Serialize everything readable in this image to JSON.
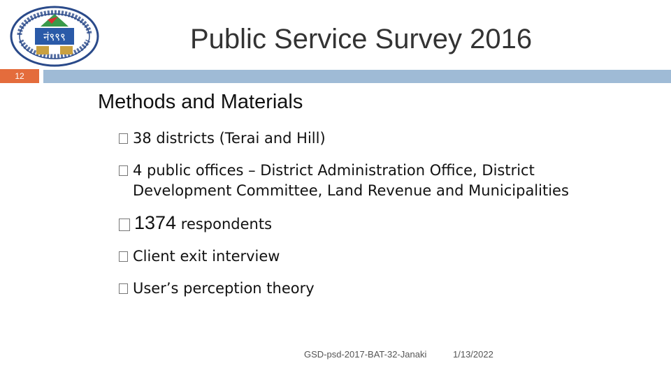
{
  "slide": {
    "title": "Public Service Survey 2016",
    "number": "12",
    "heading": "Methods and Materials"
  },
  "bullets": [
    {
      "text": "38 districts (Terai and Hill)"
    },
    {
      "text": "4 public offices – District Administration Office, District Development Committee, Land Revenue and Municipalities"
    },
    {
      "number": "1374",
      "text": "respondents"
    },
    {
      "text": "Client exit interview"
    },
    {
      "text": "User’s perception theory"
    }
  ],
  "footer": {
    "reference": "GSD-psd-2017-BAT-32-Janaki",
    "date": "1/13/2022"
  },
  "logo": {
    "center_text": "नं९९९",
    "ring_text": "NEPAL ADMINISTRATIVE STAFF COLLEGE"
  },
  "colors": {
    "accent": "#e46c3c",
    "band": "#9fbbd6",
    "title": "#333333"
  }
}
